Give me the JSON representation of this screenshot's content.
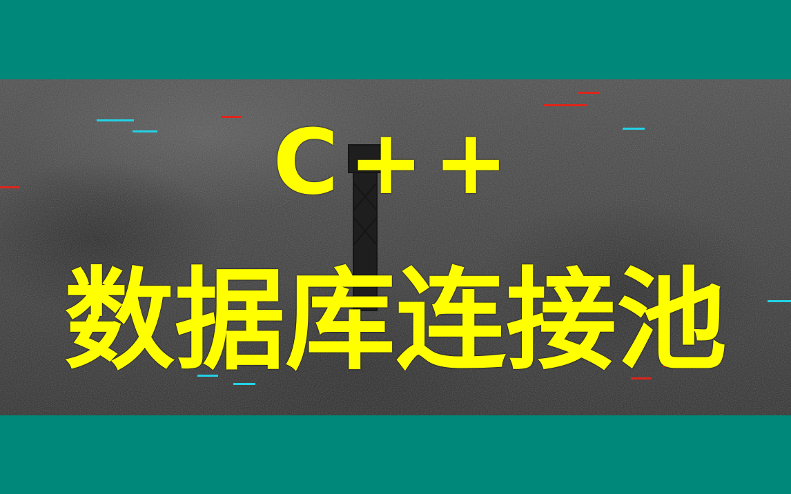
{
  "title_line1": "C++",
  "title_line2": "数据库连接池",
  "colors": {
    "band": "#00897b",
    "text": "#ffff00",
    "glitch_cyan": "#22d3e6",
    "glitch_red": "#e0241b"
  }
}
